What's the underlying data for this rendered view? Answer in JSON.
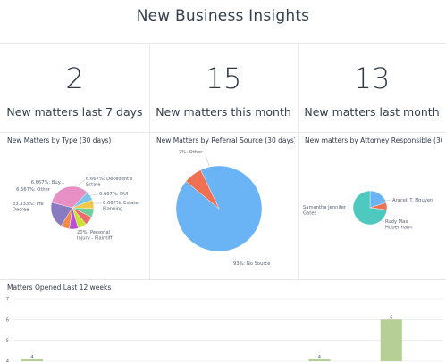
{
  "header": {
    "title": "New Business Insights"
  },
  "kpis": [
    {
      "value": "2",
      "label": "New matters last 7 days"
    },
    {
      "value": "15",
      "label": "New matters this month"
    },
    {
      "value": "13",
      "label": "New matters last month"
    }
  ],
  "panels": {
    "by_type": {
      "title": "New Matters by Type (30 days)"
    },
    "by_source": {
      "title": "New Matters by Referral Source (30 days)"
    },
    "by_attorney": {
      "title": "New matters by Attorney Responsible (30 ..."
    },
    "weekly": {
      "title": "Matters Opened Last 12 weeks"
    }
  },
  "chart_data": [
    {
      "type": "pie",
      "title": "New Matters by Type (30 days)",
      "slices": [
        {
          "label": "33.333%: Pre Decree",
          "value": 33.333,
          "color": "#e890c6"
        },
        {
          "label": "6.667%: Other",
          "value": 6.667,
          "color": "#7bc6e8"
        },
        {
          "label": "6.667%: Buy...",
          "value": 6.667,
          "color": "#f2c84b"
        },
        {
          "label": "6.667%: Decedent's Estate",
          "value": 6.667,
          "color": "#6fcf97"
        },
        {
          "label": "6.667%: DUI",
          "value": 6.667,
          "color": "#ef6a6a"
        },
        {
          "label": "6.667%: Estate Planning",
          "value": 6.667,
          "color": "#c7e534"
        },
        {
          "label": "",
          "value": 6.667,
          "color": "#b94fd6"
        },
        {
          "label": "",
          "value": 6.667,
          "color": "#f08c4a"
        },
        {
          "label": "20%: Personal Injury - Plaintiff",
          "value": 20,
          "color": "#8a7ac2"
        }
      ]
    },
    {
      "type": "pie",
      "title": "New Matters by Referral Source (30 days)",
      "slices": [
        {
          "label": "93%: No Source",
          "value": 93,
          "color": "#6ab4f5"
        },
        {
          "label": "7%: Other",
          "value": 7,
          "color": "#f07052"
        }
      ]
    },
    {
      "type": "pie",
      "title": "New matters by Attorney Responsible (30 ...",
      "slices": [
        {
          "label": "Araceli T. Nguyen",
          "value": 20,
          "color": "#6ab4f5"
        },
        {
          "label": "Rudy Max Hubermann",
          "value": 7,
          "color": "#f07052"
        },
        {
          "label": "Samantha Jennifer Gates",
          "value": 73,
          "color": "#4ec9c0"
        }
      ]
    },
    {
      "type": "bar",
      "title": "Matters Opened Last 12 weeks",
      "yticks": [
        "4",
        "5",
        "6",
        "7"
      ],
      "ylim": [
        4,
        7
      ],
      "bars": [
        {
          "index": 0,
          "value": 4,
          "label": "4"
        },
        {
          "index": 8,
          "value": 4,
          "label": "4"
        },
        {
          "index": 10,
          "value": 6,
          "label": "6"
        }
      ],
      "bar_color": "#b5cf96"
    }
  ]
}
